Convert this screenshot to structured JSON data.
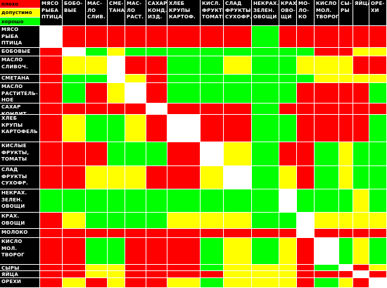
{
  "legend": [
    {
      "label": "плохо",
      "color": "#ff0000"
    },
    {
      "label": "допустимо",
      "color": "#ffff00"
    },
    {
      "label": "хорошо",
      "color": "#00ff00"
    }
  ],
  "colors": {
    "r": "#ff0000",
    "y": "#ffff00",
    "g": "#00ff00",
    "w": "#ffffff"
  },
  "columns": [
    "МЯСО\nРЫБА\nПТИЦА",
    "БОБО-\nВЫЕ",
    "МАС-\nЛО\nСЛИВ.",
    "СМЕ-\nТАНА",
    "МАС-\nЛО\nРАСТ.",
    "САХАР\nКОНД.\nИЗД.",
    "ХЛЕБ\nКРУПЫ\nКАРТОФ.",
    "КИСЛ.\nФРУКТЫ.\nТОМАТЫ",
    "СЛАД\nФРУКТЫ\nСУХОФР.",
    "НЕКРАХ.\nЗЕЛЕН.\nОВОЩИ",
    "КРАХ.\nОВО-\nЩИ",
    "МО-\nЛО-\nКО",
    "КИСЛО\nМОЛ.\nТВОРОГ",
    "СЫ-\nРЫ",
    "ЯЙЦА",
    "ОРЕ-\nХИ"
  ],
  "rows": [
    {
      "label": "МЯСО\nРЫБА\nПТИЦА",
      "cells": "wrrrrrrrrgrrrrrr"
    },
    {
      "label": "БОБОВЫЕ",
      "cells": "rwgyggggggggrryy"
    },
    {
      "label": "МАСЛО\nСЛИВОЧ.",
      "cells": "ryywrrggyggyyyrr"
    },
    {
      "label": "СМЕТАНА",
      "cells": "rggwyrggggggyyyy"
    },
    {
      "label": "МАСЛО\nРАСТИТЕЛЬ-\nНОЕ",
      "cells": "rgrywrgggggrrrrg"
    },
    {
      "label": "САХАР\nКОНДИТ.",
      "cells": "rrrrrwrrrgrrrrrr"
    },
    {
      "label": "ХЛЕБ\nКРУПЫ\nКАРТОФЕЛЬ",
      "cells": "ryggyrwrrggrrrrg"
    },
    {
      "label": "КИСЛЫЕ\nФРУКТЫ,\nТОМАТЫ",
      "cells": "rrrgggrwygrrgygg"
    },
    {
      "label": "СЛАД\nФРУКТЫ\nСУХОФР.",
      "cells": "rryyyrrywgyrgygg"
    },
    {
      "label": "НЕКРАХ.\nЗЕЛЕН.\nОВОЩИ",
      "cells": "ggggggggggwgggyg"
    },
    {
      "label": "КРАХ.\nОВОЩИ",
      "cells": "ryggggyyyggwyyyy"
    },
    {
      "label": "МОЛОКО",
      "cells": "rrrrrrrrrrrwrrrr"
    },
    {
      "label": "КИСЛО\nМОЛ.\nТВОРОГ",
      "cells": "rrggrrrgygyrwgyg"
    },
    {
      "label": "СЫРЫ",
      "cells": "rryyrrrgyyyrgwry"
    },
    {
      "label": "ЯЙЦА",
      "cells": "rryyrrrryyyrrrwr"
    },
    {
      "label": "ОРЕХИ",
      "cells": "ryryrrygyyyrgyrw"
    }
  ]
}
